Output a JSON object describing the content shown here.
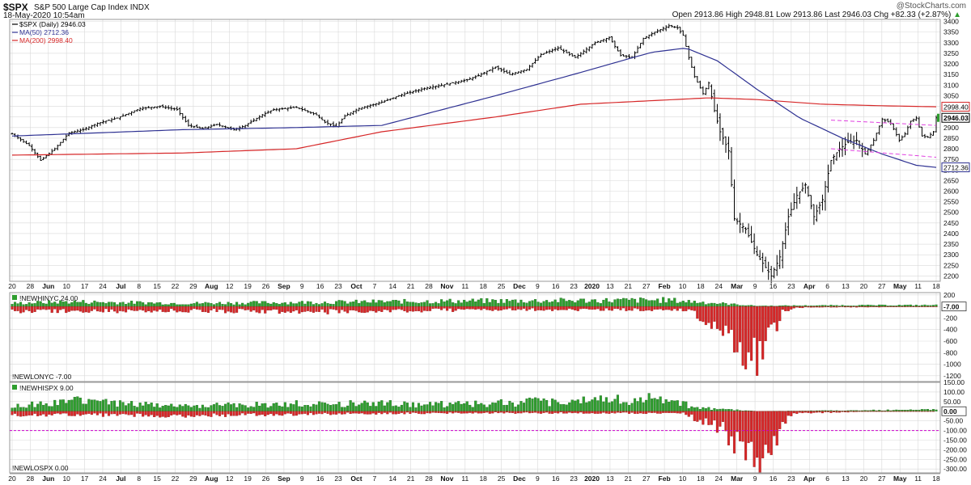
{
  "header": {
    "symbol": "$SPX",
    "name": "S&P 500 Large Cap Index",
    "exchange": "INDX",
    "datetime": "18-May-2020 10:54am",
    "attribution": "@StockCharts.com",
    "ohlc": "Open 2913.86  High 2948.81  Low 2913.86  Last 2946.03  Chg +82.33 (+2.87%)",
    "chg_arrow": "▲"
  },
  "legend": {
    "main": "$SPX (Daily) 2946.03",
    "ma50": "MA(50) 2712.36",
    "ma200": "MA(200) 2998.40"
  },
  "colors": {
    "price": "#000000",
    "ma50": "#2e3192",
    "ma200": "#d62728",
    "trend": "#e040e0",
    "bar_up": "#2e9e2e",
    "bar_down": "#d62728",
    "reference": "#cc00cc",
    "grid": "#d9d9d9",
    "last_tag": "#2e9e2e"
  },
  "chart_data": [
    {
      "type": "ohlc",
      "title": "$SPX (Daily) 2946.03",
      "ylim": [
        2175,
        3410
      ],
      "y_ticks": [
        2200,
        2250,
        2300,
        2350,
        2400,
        2450,
        2500,
        2550,
        2600,
        2650,
        2700,
        2750,
        2800,
        2850,
        2900,
        2950,
        3000,
        3050,
        3100,
        3150,
        3200,
        3250,
        3300,
        3350,
        3400
      ],
      "value_tags": [
        {
          "label": "2998.40",
          "value": 2998.4,
          "series": "ma200"
        },
        {
          "label": "2946.03",
          "value": 2946.03,
          "series": "price"
        },
        {
          "label": "2712.36",
          "value": 2712.36,
          "series": "ma50"
        }
      ],
      "x_tick_labels": [
        "20",
        "28",
        "Jun",
        "10",
        "17",
        "24",
        "Jul",
        "8",
        "15",
        "22",
        "29",
        "Aug",
        "12",
        "19",
        "26",
        "Sep",
        "9",
        "16",
        "23",
        "Oct",
        "7",
        "14",
        "21",
        "28",
        "Nov",
        "11",
        "18",
        "25",
        "Dec",
        "9",
        "16",
        "23",
        "2020",
        "13",
        "21",
        "27",
        "Feb",
        "10",
        "18",
        "24",
        "Mar",
        "9",
        "16",
        "23",
        "Apr",
        "6",
        "13",
        "20",
        "27",
        "May",
        "11",
        "18"
      ],
      "close_anchors": [
        [
          0,
          2870
        ],
        [
          6,
          2815
        ],
        [
          10,
          2745
        ],
        [
          15,
          2800
        ],
        [
          20,
          2875
        ],
        [
          25,
          2890
        ],
        [
          30,
          2920
        ],
        [
          37,
          2945
        ],
        [
          45,
          2990
        ],
        [
          52,
          3000
        ],
        [
          58,
          2985
        ],
        [
          62,
          2910
        ],
        [
          67,
          2895
        ],
        [
          72,
          2915
        ],
        [
          78,
          2890
        ],
        [
          82,
          2910
        ],
        [
          88,
          2960
        ],
        [
          92,
          2985
        ],
        [
          100,
          2995
        ],
        [
          107,
          2960
        ],
        [
          110,
          2925
        ],
        [
          114,
          2905
        ],
        [
          117,
          2955
        ],
        [
          122,
          2990
        ],
        [
          130,
          3020
        ],
        [
          137,
          3055
        ],
        [
          145,
          3085
        ],
        [
          153,
          3105
        ],
        [
          160,
          3125
        ],
        [
          164,
          3145
        ],
        [
          170,
          3185
        ],
        [
          175,
          3150
        ],
        [
          181,
          3175
        ],
        [
          186,
          3245
        ],
        [
          192,
          3275
        ],
        [
          198,
          3230
        ],
        [
          205,
          3300
        ],
        [
          210,
          3325
        ],
        [
          214,
          3240
        ],
        [
          218,
          3230
        ],
        [
          222,
          3320
        ],
        [
          226,
          3350
        ],
        [
          231,
          3380
        ],
        [
          234,
          3370
        ],
        [
          236,
          3335
        ],
        [
          238,
          3230
        ],
        [
          240,
          3140
        ],
        [
          243,
          3060
        ],
        [
          245,
          3110
        ],
        [
          247,
          2980
        ],
        [
          249,
          2880
        ],
        [
          252,
          2790
        ],
        [
          254,
          2470
        ],
        [
          258,
          2420
        ],
        [
          262,
          2300
        ],
        [
          265,
          2240
        ],
        [
          267,
          2200
        ],
        [
          270,
          2290
        ],
        [
          273,
          2480
        ],
        [
          276,
          2580
        ],
        [
          279,
          2630
        ],
        [
          282,
          2480
        ],
        [
          285,
          2560
        ],
        [
          288,
          2745
        ],
        [
          291,
          2800
        ],
        [
          294,
          2830
        ],
        [
          297,
          2840
        ],
        [
          300,
          2775
        ],
        [
          303,
          2840
        ],
        [
          306,
          2940
        ],
        [
          309,
          2920
        ],
        [
          312,
          2840
        ],
        [
          314,
          2870
        ],
        [
          316,
          2930
        ],
        [
          318,
          2945
        ],
        [
          320,
          2860
        ],
        [
          322,
          2855
        ],
        [
          324,
          2880
        ],
        [
          325,
          2946
        ]
      ],
      "n_days": 326,
      "series": [
        {
          "name": "MA(50) 2712.36",
          "key": "ma50",
          "points": [
            [
              0,
              2860
            ],
            [
              60,
              2890
            ],
            [
              100,
              2900
            ],
            [
              130,
              2910
            ],
            [
              170,
              3050
            ],
            [
              200,
              3160
            ],
            [
              225,
              3255
            ],
            [
              237,
              3275
            ],
            [
              248,
              3215
            ],
            [
              262,
              3080
            ],
            [
              277,
              2945
            ],
            [
              292,
              2850
            ],
            [
              306,
              2775
            ],
            [
              318,
              2722
            ],
            [
              325,
              2712
            ]
          ]
        },
        {
          "name": "MA(200) 2998.40",
          "key": "ma200",
          "points": [
            [
              0,
              2770
            ],
            [
              60,
              2780
            ],
            [
              100,
              2800
            ],
            [
              130,
              2880
            ],
            [
              170,
              2950
            ],
            [
              200,
              3010
            ],
            [
              230,
              3030
            ],
            [
              245,
              3040
            ],
            [
              262,
              3032
            ],
            [
              285,
              3010
            ],
            [
              305,
              3003
            ],
            [
              325,
              2998
            ]
          ]
        }
      ],
      "trendlines": [
        {
          "from": [
            288,
            2935
          ],
          "to": [
            325,
            2910
          ]
        },
        {
          "from": [
            288,
            2800
          ],
          "to": [
            325,
            2760
          ]
        }
      ]
    },
    {
      "type": "bar",
      "title": "!NEWHINYC 24.00",
      "footer": "!NEWLONYC -7.00",
      "ylim": [
        -1300,
        240
      ],
      "y_ticks": [
        200,
        0,
        -200,
        -400,
        -600,
        -800,
        -1000,
        -1200
      ],
      "last_tag": "-7.00",
      "highs_level": [
        [
          0,
          60
        ],
        [
          20,
          90
        ],
        [
          60,
          60
        ],
        [
          110,
          80
        ],
        [
          150,
          100
        ],
        [
          190,
          110
        ],
        [
          230,
          120
        ],
        [
          240,
          90
        ],
        [
          262,
          10
        ],
        [
          290,
          20
        ],
        [
          325,
          24
        ]
      ],
      "lows_level": [
        [
          0,
          -90
        ],
        [
          60,
          -80
        ],
        [
          110,
          -100
        ],
        [
          150,
          -70
        ],
        [
          190,
          -60
        ],
        [
          236,
          -60
        ],
        [
          240,
          -150
        ],
        [
          250,
          -500
        ],
        [
          254,
          -650
        ],
        [
          258,
          -900
        ],
        [
          262,
          -1150
        ],
        [
          265,
          -700
        ],
        [
          268,
          -500
        ],
        [
          271,
          -120
        ],
        [
          276,
          -20
        ],
        [
          300,
          -10
        ],
        [
          325,
          -7
        ]
      ]
    },
    {
      "type": "bar",
      "title": "!NEWHISPX 9.00",
      "footer": "!NEWLOSPX 0.00",
      "ylim": [
        -320,
        150
      ],
      "y_ticks": [
        150,
        100,
        50,
        0,
        -50,
        -100,
        -150,
        -200,
        -250,
        -300
      ],
      "reference_level": -100,
      "last_tag": "0.00",
      "highs_level": [
        [
          0,
          25
        ],
        [
          20,
          60
        ],
        [
          60,
          30
        ],
        [
          110,
          45
        ],
        [
          150,
          40
        ],
        [
          190,
          55
        ],
        [
          225,
          70
        ],
        [
          235,
          50
        ],
        [
          240,
          20
        ],
        [
          262,
          0
        ],
        [
          300,
          5
        ],
        [
          325,
          9
        ]
      ],
      "lows_level": [
        [
          0,
          -20
        ],
        [
          60,
          -25
        ],
        [
          110,
          -15
        ],
        [
          150,
          -10
        ],
        [
          190,
          -10
        ],
        [
          236,
          -10
        ],
        [
          240,
          -40
        ],
        [
          250,
          -120
        ],
        [
          254,
          -200
        ],
        [
          258,
          -260
        ],
        [
          262,
          -280
        ],
        [
          265,
          -220
        ],
        [
          268,
          -180
        ],
        [
          271,
          -60
        ],
        [
          276,
          -10
        ],
        [
          300,
          -2
        ],
        [
          325,
          0
        ]
      ]
    }
  ]
}
